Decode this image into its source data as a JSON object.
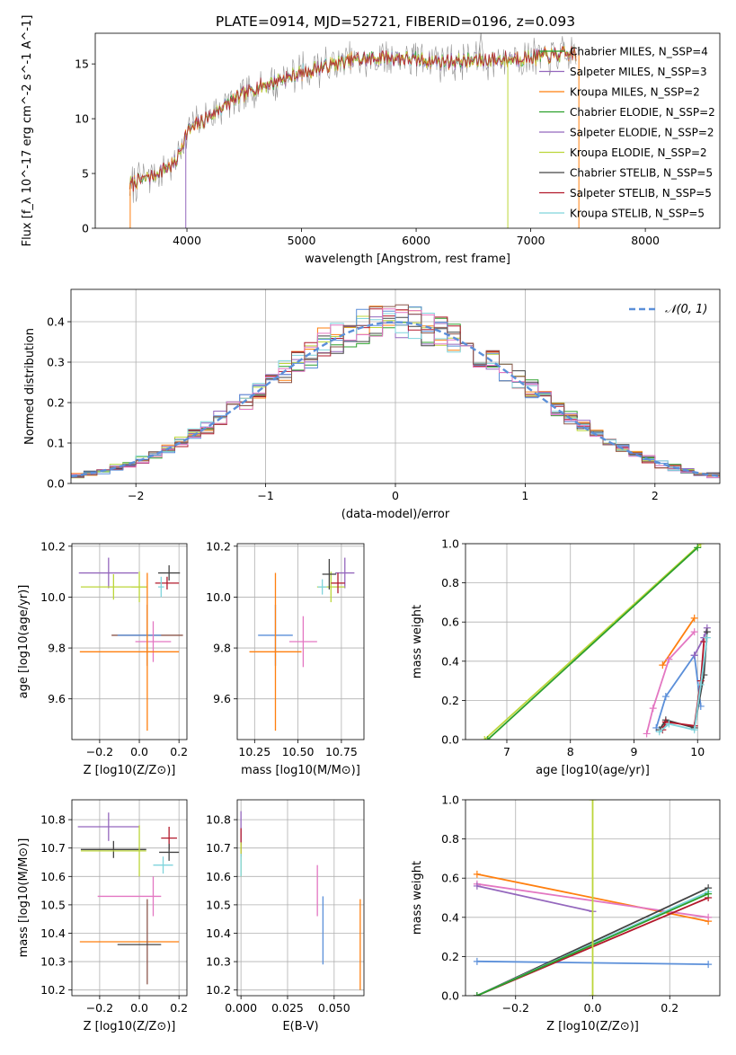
{
  "figure": {
    "title": "PLATE=0914, MJD=52721, FIBERID=0196, z=0.093"
  },
  "colors": {
    "c0": "#2ca02c",
    "c1": "#ff7f0e",
    "c2": "#e377c2",
    "c3": "#5b8fd9",
    "c4": "#9467bd",
    "c5": "#bcd63a",
    "c6": "#17becf",
    "c7": "#8c564b",
    "c8": "#444444",
    "c9": "#b2182b",
    "c10": "#7fd4dc"
  },
  "chart_data": [
    {
      "id": "spectrum",
      "type": "line",
      "xlabel": "wavelength [Angstrom, rest frame]",
      "ylabel": "Flux [f_λ 10^-17 erg cm^-2 s^-1 A^-1]",
      "xlim": [
        3200,
        8650
      ],
      "ylim": [
        0,
        17.8
      ],
      "xticks": [
        "4000",
        "5000",
        "6000",
        "7000",
        "8000"
      ],
      "yticks": [
        "0",
        "5",
        "10",
        "15"
      ],
      "grid": false,
      "legend_position": "top-right",
      "legend": [
        {
          "name": "Chabrier MILES, N_SSP=4",
          "color": "#2ca02c"
        },
        {
          "name": "Salpeter MILES, N_SSP=3",
          "color": "#9467bd"
        },
        {
          "name": "Kroupa MILES, N_SSP=2",
          "color": "#ff7f0e"
        },
        {
          "name": "Chabrier ELODIE, N_SSP=2",
          "color": "#2ca02c"
        },
        {
          "name": "Salpeter ELODIE, N_SSP=2",
          "color": "#9467bd"
        },
        {
          "name": "Kroupa ELODIE, N_SSP=2",
          "color": "#bcd63a"
        },
        {
          "name": "Chabrier STELIB, N_SSP=5",
          "color": "#444444"
        },
        {
          "name": "Salpeter STELIB, N_SSP=5",
          "color": "#b2182b"
        },
        {
          "name": "Kroupa STELIB, N_SSP=5",
          "color": "#7fd4dc"
        }
      ],
      "continuum": {
        "x": [
          3500,
          3700,
          3900,
          4000,
          4300,
          4600,
          5000,
          5400,
          5800,
          6200,
          6600,
          7000,
          7400
        ],
        "y": [
          4.0,
          4.8,
          6.0,
          8.8,
          11.0,
          12.8,
          14.2,
          15.3,
          15.6,
          15.2,
          15.3,
          15.6,
          16.0
        ]
      }
    },
    {
      "id": "residuals",
      "type": "bar",
      "xlabel": "(data-model)/error",
      "ylabel": "Normed distribution",
      "xlim": [
        -2.5,
        2.5
      ],
      "ylim": [
        0,
        0.48
      ],
      "xticks": [
        "−2",
        "−1",
        "0",
        "1",
        "2"
      ],
      "yticks": [
        "0.0",
        "0.1",
        "0.2",
        "0.3",
        "0.4"
      ],
      "grid": true,
      "legend_position": "top-right",
      "legend": [
        {
          "name": "𝒩(0, 1)",
          "color": "#5b8fd9",
          "style": "dashed"
        }
      ],
      "reference_curve": {
        "mean": 0,
        "sigma": 1
      },
      "bin_width": 0.1
    },
    {
      "id": "age-vs-Z",
      "type": "scatter",
      "xlabel": "Z [log10(Z/Z⊙)]",
      "ylabel": "age [log10(age/yr)]",
      "xlim": [
        -0.34,
        0.24
      ],
      "ylim": [
        9.44,
        10.21
      ],
      "xticks": [
        "−0.2",
        "0.0",
        "0.2"
      ],
      "yticks": [
        "9.6",
        "9.8",
        "10.0",
        "10.2"
      ],
      "grid": true,
      "points": [
        {
          "x": -0.155,
          "y": 10.095,
          "xerr": 0.15,
          "yerr": 0.06,
          "color": "#9467bd"
        },
        {
          "x": -0.13,
          "y": 10.04,
          "xerr": 0.165,
          "yerr": 0.05,
          "color": "#bcd63a"
        },
        {
          "x": 0.0,
          "y": 10.04,
          "xerr": 0.04,
          "yerr": 0.06,
          "color": "#bcd63a"
        },
        {
          "x": 0.15,
          "y": 10.095,
          "xerr": 0.055,
          "yerr": 0.03,
          "color": "#444444"
        },
        {
          "x": 0.14,
          "y": 10.055,
          "xerr": 0.06,
          "yerr": 0.025,
          "color": "#b2182b"
        },
        {
          "x": 0.11,
          "y": 10.04,
          "xerr": 0.015,
          "yerr": 0.04,
          "color": "#7fd4dc"
        },
        {
          "x": 0.04,
          "y": 9.85,
          "xerr": 0.18,
          "yerr": 0.12,
          "color": "#8c564b"
        },
        {
          "x": 0.0,
          "y": 9.85,
          "xerr": 0.11,
          "yerr": 0.0,
          "color": "#5b8fd9"
        },
        {
          "x": 0.07,
          "y": 9.825,
          "xerr": 0.09,
          "yerr": 0.08,
          "color": "#e377c2"
        },
        {
          "x": -0.05,
          "y": 9.785,
          "xerr": 0.25,
          "yerr": 0.0,
          "color": "#ff7f0e"
        },
        {
          "x": 0.04,
          "y": 9.785,
          "xerr": 0.0,
          "yerr": 0.31,
          "color": "#ff7f0e"
        }
      ]
    },
    {
      "id": "age-vs-mass",
      "type": "scatter",
      "xlabel": "mass [log10(M/M⊙)]",
      "ylabel": "",
      "xlim": [
        10.15,
        10.88
      ],
      "ylim": [
        9.44,
        10.21
      ],
      "xticks": [
        "10.25",
        "10.50",
        "10.75"
      ],
      "yticks": [
        "9.6",
        "9.8",
        "10.0",
        "10.2"
      ],
      "grid": true,
      "points": [
        {
          "x": 10.77,
          "y": 10.095,
          "xerr": 0.055,
          "yerr": 0.06,
          "color": "#9467bd"
        },
        {
          "x": 10.69,
          "y": 10.04,
          "xerr": 0.08,
          "yerr": 0.06,
          "color": "#bcd63a"
        },
        {
          "x": 10.68,
          "y": 10.09,
          "xerr": 0.04,
          "yerr": 0.06,
          "color": "#444444"
        },
        {
          "x": 10.73,
          "y": 10.055,
          "xerr": 0.04,
          "yerr": 0.04,
          "color": "#b2182b"
        },
        {
          "x": 10.64,
          "y": 10.04,
          "xerr": 0.025,
          "yerr": 0.03,
          "color": "#7fd4dc"
        },
        {
          "x": 10.37,
          "y": 9.85,
          "xerr": 0.1,
          "yerr": 0.12,
          "color": "#5b8fd9"
        },
        {
          "x": 10.53,
          "y": 9.825,
          "xerr": 0.08,
          "yerr": 0.1,
          "color": "#e377c2"
        },
        {
          "x": 10.37,
          "y": 9.785,
          "xerr": 0.15,
          "yerr": 0.31,
          "color": "#ff7f0e"
        }
      ]
    },
    {
      "id": "weight-vs-age",
      "type": "line",
      "xlabel": "age [log10(age/yr)]",
      "ylabel": "mass weight",
      "xlim": [
        6.35,
        10.35
      ],
      "ylim": [
        0,
        1.0
      ],
      "xticks": [
        "7",
        "8",
        "9",
        "10"
      ],
      "yticks": [
        "0.0",
        "0.2",
        "0.4",
        "0.6",
        "0.8",
        "1.0"
      ],
      "grid": true,
      "series": [
        {
          "color": "#bcd63a",
          "x": [
            6.65,
            10.05
          ],
          "y": [
            0.0,
            1.0
          ]
        },
        {
          "color": "#2ca02c",
          "x": [
            6.7,
            10.0
          ],
          "y": [
            0.0,
            0.98
          ]
        },
        {
          "color": "#ff7f0e",
          "x": [
            9.45,
            9.95
          ],
          "y": [
            0.38,
            0.62
          ]
        },
        {
          "color": "#e377c2",
          "x": [
            9.2,
            9.3,
            9.55,
            9.95
          ],
          "y": [
            0.03,
            0.16,
            0.41,
            0.55
          ]
        },
        {
          "color": "#5b8fd9",
          "x": [
            9.35,
            9.5,
            9.95,
            10.05
          ],
          "y": [
            0.06,
            0.22,
            0.43,
            0.17
          ]
        },
        {
          "color": "#9467bd",
          "x": [
            9.95,
            10.1,
            10.15
          ],
          "y": [
            0.43,
            0.52,
            0.57
          ]
        },
        {
          "color": "#444444",
          "x": [
            9.4,
            9.5,
            9.95,
            10.1,
            10.15
          ],
          "y": [
            0.05,
            0.1,
            0.06,
            0.33,
            0.55
          ]
        },
        {
          "color": "#b2182b",
          "x": [
            9.45,
            9.5,
            9.95,
            10.05,
            10.1
          ],
          "y": [
            0.05,
            0.09,
            0.07,
            0.3,
            0.5
          ]
        },
        {
          "color": "#7fd4dc",
          "x": [
            9.4,
            9.55,
            9.95,
            10.05,
            10.15
          ],
          "y": [
            0.04,
            0.08,
            0.05,
            0.28,
            0.52
          ]
        }
      ]
    },
    {
      "id": "mass-vs-Z",
      "type": "scatter",
      "xlabel": "Z [log10(Z/Z⊙)]",
      "ylabel": "mass [log10(M/M⊙)]",
      "xlim": [
        -0.34,
        0.24
      ],
      "ylim": [
        10.18,
        10.87
      ],
      "xticks": [
        "−0.2",
        "0.0",
        "0.2"
      ],
      "yticks": [
        "10.2",
        "10.3",
        "10.4",
        "10.5",
        "10.6",
        "10.7",
        "10.8"
      ],
      "grid": true,
      "points": [
        {
          "x": -0.155,
          "y": 10.775,
          "xerr": 0.155,
          "yerr": 0.05,
          "color": "#9467bd"
        },
        {
          "x": 0.15,
          "y": 10.735,
          "xerr": 0.04,
          "yerr": 0.04,
          "color": "#b2182b"
        },
        {
          "x": -0.13,
          "y": 10.695,
          "xerr": 0.165,
          "yerr": 0.03,
          "color": "#444444"
        },
        {
          "x": -0.13,
          "y": 10.69,
          "xerr": 0.165,
          "yerr": 0.0,
          "color": "#bcd63a"
        },
        {
          "x": 0.0,
          "y": 10.69,
          "xerr": 0.0,
          "yerr": 0.09,
          "color": "#bcd63a"
        },
        {
          "x": 0.15,
          "y": 10.685,
          "xerr": 0.05,
          "yerr": 0.03,
          "color": "#444444"
        },
        {
          "x": 0.12,
          "y": 10.64,
          "xerr": 0.05,
          "yerr": 0.03,
          "color": "#7fd4dc"
        },
        {
          "x": -0.05,
          "y": 10.53,
          "xerr": 0.16,
          "yerr": 0.0,
          "color": "#e377c2"
        },
        {
          "x": 0.07,
          "y": 10.53,
          "xerr": 0.0,
          "yerr": 0.07,
          "color": "#e377c2"
        },
        {
          "x": -0.05,
          "y": 10.37,
          "xerr": 0.25,
          "yerr": 0.0,
          "color": "#ff7f0e"
        },
        {
          "x": 0.04,
          "y": 10.37,
          "xerr": 0.0,
          "yerr": 0.15,
          "color": "#8c564b"
        },
        {
          "x": 0.0,
          "y": 10.36,
          "xerr": 0.11,
          "yerr": 0.0,
          "color": "#444444"
        }
      ]
    },
    {
      "id": "mass-vs-ebv",
      "type": "scatter",
      "xlabel": "E(B-V)",
      "ylabel": "",
      "xlim": [
        -0.002,
        0.066
      ],
      "ylim": [
        10.18,
        10.87
      ],
      "xticks": [
        "0.000",
        "0.025",
        "0.050"
      ],
      "yticks": [
        "10.2",
        "10.3",
        "10.4",
        "10.5",
        "10.6",
        "10.7",
        "10.8"
      ],
      "grid": true,
      "points": [
        {
          "x": 0.0,
          "y": 10.77,
          "xerr": 0.0,
          "yerr": 0.06,
          "color": "#9467bd"
        },
        {
          "x": 0.0,
          "y": 10.72,
          "xerr": 0.0,
          "yerr": 0.05,
          "color": "#b2182b"
        },
        {
          "x": 0.0,
          "y": 10.66,
          "xerr": 0.0,
          "yerr": 0.06,
          "color": "#bcd63a"
        },
        {
          "x": 0.0,
          "y": 10.64,
          "xerr": 0.0,
          "yerr": 0.04,
          "color": "#7fd4dc"
        },
        {
          "x": 0.041,
          "y": 10.55,
          "xerr": 0.0,
          "yerr": 0.09,
          "color": "#e377c2"
        },
        {
          "x": 0.044,
          "y": 10.41,
          "xerr": 0.0,
          "yerr": 0.12,
          "color": "#5b8fd9"
        },
        {
          "x": 0.064,
          "y": 10.36,
          "xerr": 0.0,
          "yerr": 0.16,
          "color": "#ff7f0e"
        }
      ]
    },
    {
      "id": "weight-vs-Z",
      "type": "line",
      "xlabel": "Z [log10(Z/Z⊙)]",
      "ylabel": "mass weight",
      "xlim": [
        -0.33,
        0.33
      ],
      "ylim": [
        0,
        1.0
      ],
      "xticks": [
        "−0.2",
        "0.0",
        "0.2"
      ],
      "yticks": [
        "0.0",
        "0.2",
        "0.4",
        "0.6",
        "0.8",
        "1.0"
      ],
      "grid": true,
      "series": [
        {
          "color": "#ff7f0e",
          "x": [
            -0.3,
            0.3
          ],
          "y": [
            0.62,
            0.38
          ]
        },
        {
          "color": "#e377c2",
          "x": [
            -0.3,
            0.3
          ],
          "y": [
            0.57,
            0.4
          ]
        },
        {
          "color": "#9467bd",
          "x": [
            -0.3,
            0.0
          ],
          "y": [
            0.56,
            0.43
          ]
        },
        {
          "color": "#5b8fd9",
          "x": [
            -0.3,
            0.3
          ],
          "y": [
            0.175,
            0.16
          ]
        },
        {
          "color": "#444444",
          "x": [
            -0.3,
            0.3
          ],
          "y": [
            0.0,
            0.55
          ]
        },
        {
          "color": "#b2182b",
          "x": [
            -0.3,
            0.3
          ],
          "y": [
            0.0,
            0.5
          ]
        },
        {
          "color": "#7fd4dc",
          "x": [
            -0.3,
            0.3
          ],
          "y": [
            0.0,
            0.53
          ]
        },
        {
          "color": "#2ca02c",
          "x": [
            -0.3,
            0.3
          ],
          "y": [
            0.0,
            0.52
          ]
        },
        {
          "color": "#bcd63a",
          "x": [
            0.0,
            0.0
          ],
          "y": [
            0.0,
            1.0
          ]
        }
      ]
    }
  ]
}
